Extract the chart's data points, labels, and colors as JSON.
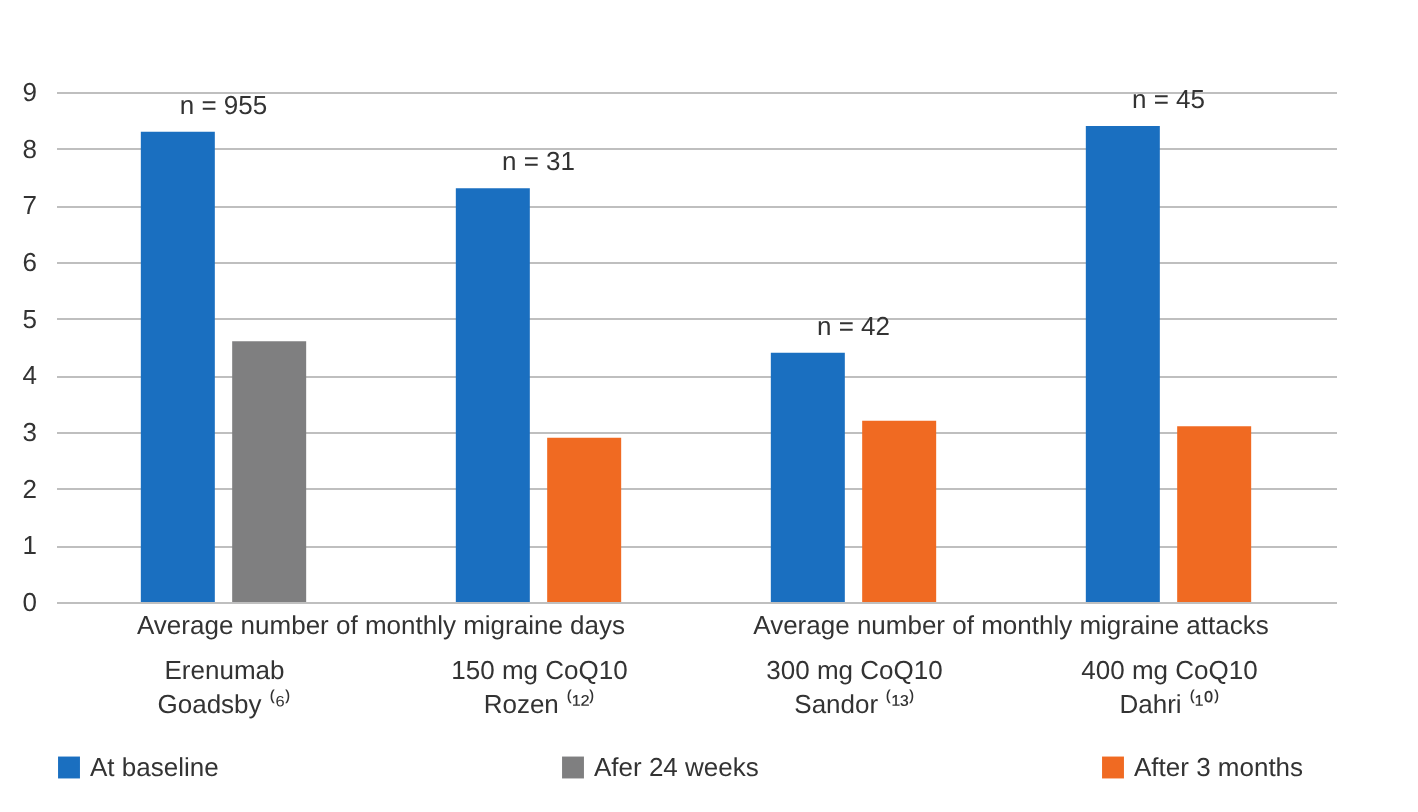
{
  "chart_data": {
    "type": "bar",
    "categories": [
      "Erenumab\nGoadsby ⁽⁶⁾",
      "150 mg CoQ10\nRozen ⁽¹²⁾",
      "300 mg CoQ10\nSandor ⁽¹³⁾",
      "400 mg CoQ10\nDahri ⁽¹⁰⁾"
    ],
    "series": [
      {
        "name": "At baseline",
        "color": "#1a6fc0",
        "values": [
          8.3,
          7.3,
          4.4,
          8.4
        ]
      },
      {
        "name": "Afer 24 weeks",
        "color": "#7f7f80",
        "values": [
          4.6,
          null,
          null,
          null
        ]
      },
      {
        "name": "After 3 months",
        "color": "#f06a22",
        "values": [
          null,
          2.9,
          3.2,
          3.1
        ]
      }
    ],
    "ylim": [
      0,
      9
    ],
    "yticks": [
      0,
      1,
      2,
      3,
      4,
      5,
      6,
      7,
      8,
      9
    ],
    "grid": "y",
    "legend": "bottom",
    "annotations": [
      "Average number of monthly migraine days",
      "Average number of monthly migraine attacks",
      "n = 955",
      "n = 31",
      "n = 42",
      "n = 45"
    ]
  }
}
